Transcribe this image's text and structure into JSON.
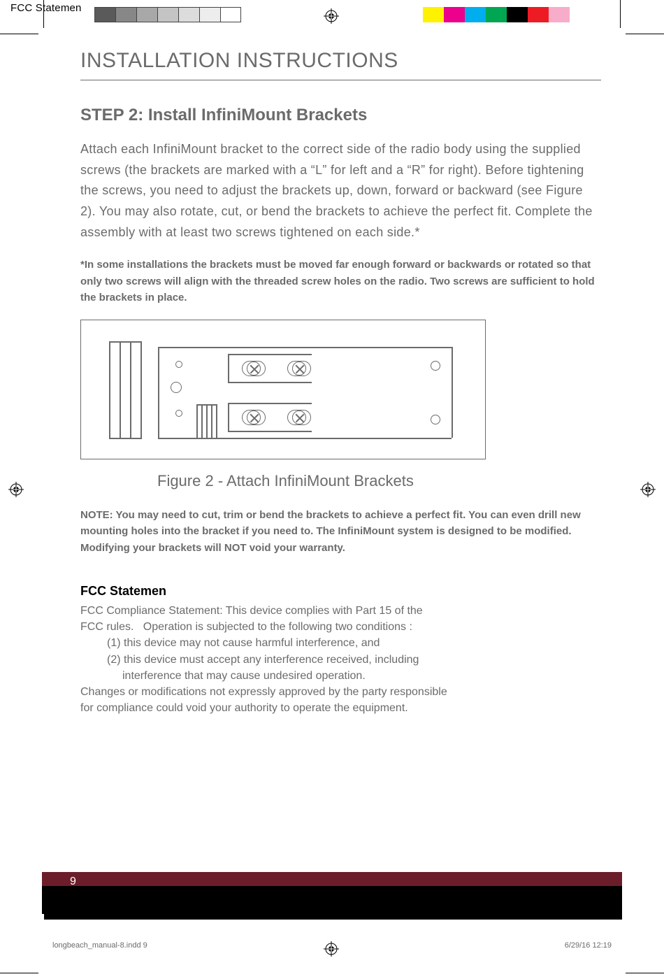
{
  "header": {
    "tag": "FCC Statemen"
  },
  "swatches": {
    "left": [
      "#5a5a5a",
      "#878787",
      "#a8a8a8",
      "#c4c4c4",
      "#dcdcdc",
      "#ededed",
      "#ffffff"
    ],
    "right": [
      "#fff200",
      "#ec008c",
      "#00aeef",
      "#00a651",
      "#000000",
      "#ed1c24",
      "#f7adc9",
      "#ffffff"
    ]
  },
  "page": {
    "title": "INSTALLATION INSTRUCTIONS",
    "step_heading": "STEP 2: Install InfiniMount Brackets",
    "body": "Attach each InfiniMount bracket to the correct side of the radio body using the supplied screws (the brackets are marked with a “L” for left and a “R” for right). Before tightening the screws, you need to adjust the brackets up, down, forward or backward (see Figure 2). You may also rotate, cut, or bend the brackets to achieve the perfect fit. Complete the assembly with at least two screws tightened on each side.*",
    "footnote": "*In some installations the brackets must be moved far enough forward or backwards or rotated so that only two screws will align with the threaded screw holes on the radio. Two screws are sufficient to hold the brackets in place.",
    "figure_caption": "Figure 2 - Attach InfiniMount Brackets",
    "note": "NOTE: You may need to cut, trim or bend the brackets to achieve a perfect fit. You can even drill new mounting holes into the bracket if you need to. The InfiniMount system is designed to be modified. Modifying your brackets will NOT void your warranty.",
    "fcc_heading": "FCC Statemen",
    "fcc_line1": "FCC Compliance Statement: This device complies with Part 15 of the",
    "fcc_line2": "FCC rules.   Operation is subjected to the following two conditions :",
    "fcc_item1": "(1) this device may not cause harmful interference, and",
    "fcc_item2": "(2) this device must accept any interference received, including",
    "fcc_item2b": "interference that may cause undesired operation.",
    "fcc_line3": "Changes or modifications not expressly approved by the party responsible",
    "fcc_line4": "for compliance could void your authority to operate the equipment."
  },
  "footer": {
    "page_number": "9",
    "slug": "longbeach_manual-8.indd   9",
    "date": "6/29/16   12:19",
    "maroon": "#6b1e2a",
    "black": "#000000"
  },
  "colors": {
    "text_gray": "#6b6b6b",
    "line_gray": "#6b6b6b"
  }
}
